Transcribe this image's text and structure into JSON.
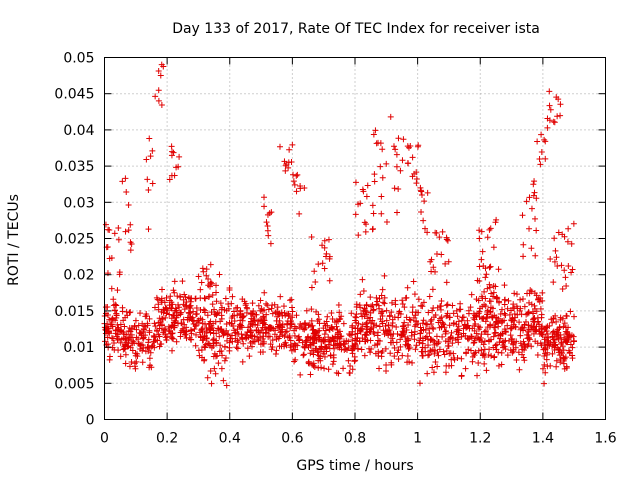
{
  "chart_data": {
    "type": "scatter",
    "title": "Day 133 of 2017, Rate Of TEC Index for receiver ista",
    "xlabel": "GPS time / hours",
    "ylabel": "ROTI / TECUs",
    "xlim": [
      0,
      1.6
    ],
    "ylim": [
      0,
      0.05
    ],
    "grid": true,
    "marker": "+",
    "marker_color": "#e00000",
    "x_ticks": [
      "0",
      "0.2",
      "0.4",
      "0.6",
      "0.8",
      "1",
      "1.2",
      "1.4",
      "1.6"
    ],
    "y_ticks": [
      "0",
      "0.005",
      "0.01",
      "0.015",
      "0.02",
      "0.025",
      "0.03",
      "0.035",
      "0.04",
      "0.045",
      "0.05"
    ],
    "series": [
      {
        "name": "ROTI",
        "x_range": [
          0,
          1.5
        ],
        "point_count": 1800,
        "band_levels": [
          {
            "x_from": 0.0,
            "x_to": 0.05,
            "y_center": 0.013,
            "y_spread": 0.004
          },
          {
            "x_from": 0.05,
            "x_to": 0.16,
            "y_center": 0.011,
            "y_spread": 0.004
          },
          {
            "x_from": 0.16,
            "x_to": 0.3,
            "y_center": 0.014,
            "y_spread": 0.004
          },
          {
            "x_from": 0.3,
            "x_to": 0.4,
            "y_center": 0.012,
            "y_spread": 0.006
          },
          {
            "x_from": 0.4,
            "x_to": 0.6,
            "y_center": 0.013,
            "y_spread": 0.004
          },
          {
            "x_from": 0.6,
            "x_to": 0.8,
            "y_center": 0.011,
            "y_spread": 0.004
          },
          {
            "x_from": 0.8,
            "x_to": 1.0,
            "y_center": 0.013,
            "y_spread": 0.005
          },
          {
            "x_from": 1.0,
            "x_to": 1.2,
            "y_center": 0.012,
            "y_spread": 0.005
          },
          {
            "x_from": 1.2,
            "x_to": 1.4,
            "y_center": 0.013,
            "y_spread": 0.005
          },
          {
            "x_from": 1.4,
            "x_to": 1.5,
            "y_center": 0.011,
            "y_spread": 0.004
          }
        ],
        "bursts": [
          {
            "x_from": 0.0,
            "x_to": 0.05,
            "y_from": 0.018,
            "y_to": 0.028
          },
          {
            "x_from": 0.05,
            "x_to": 0.09,
            "y_from": 0.022,
            "y_to": 0.034
          },
          {
            "x_from": 0.13,
            "x_to": 0.16,
            "y_from": 0.026,
            "y_to": 0.042
          },
          {
            "x_from": 0.16,
            "x_to": 0.19,
            "y_from": 0.043,
            "y_to": 0.05
          },
          {
            "x_from": 0.2,
            "x_to": 0.24,
            "y_from": 0.033,
            "y_to": 0.038
          },
          {
            "x_from": 0.3,
            "x_to": 0.36,
            "y_from": 0.016,
            "y_to": 0.022
          },
          {
            "x_from": 0.5,
            "x_to": 0.54,
            "y_from": 0.024,
            "y_to": 0.031
          },
          {
            "x_from": 0.56,
            "x_to": 0.6,
            "y_from": 0.033,
            "y_to": 0.038
          },
          {
            "x_from": 0.6,
            "x_to": 0.64,
            "y_from": 0.028,
            "y_to": 0.034
          },
          {
            "x_from": 0.66,
            "x_to": 0.72,
            "y_from": 0.018,
            "y_to": 0.026
          },
          {
            "x_from": 0.8,
            "x_to": 0.86,
            "y_from": 0.024,
            "y_to": 0.034
          },
          {
            "x_from": 0.86,
            "x_to": 0.96,
            "y_from": 0.027,
            "y_to": 0.042
          },
          {
            "x_from": 0.96,
            "x_to": 1.01,
            "y_from": 0.03,
            "y_to": 0.038
          },
          {
            "x_from": 1.0,
            "x_to": 1.04,
            "y_from": 0.025,
            "y_to": 0.033
          },
          {
            "x_from": 1.04,
            "x_to": 1.1,
            "y_from": 0.02,
            "y_to": 0.026
          },
          {
            "x_from": 1.18,
            "x_to": 1.26,
            "y_from": 0.018,
            "y_to": 0.028
          },
          {
            "x_from": 1.32,
            "x_to": 1.38,
            "y_from": 0.022,
            "y_to": 0.033
          },
          {
            "x_from": 1.38,
            "x_to": 1.41,
            "y_from": 0.035,
            "y_to": 0.04
          },
          {
            "x_from": 1.41,
            "x_to": 1.46,
            "y_from": 0.04,
            "y_to": 0.046
          },
          {
            "x_from": 1.42,
            "x_to": 1.48,
            "y_from": 0.018,
            "y_to": 0.026
          },
          {
            "x_from": 1.48,
            "x_to": 1.5,
            "y_from": 0.02,
            "y_to": 0.029
          }
        ]
      }
    ]
  }
}
